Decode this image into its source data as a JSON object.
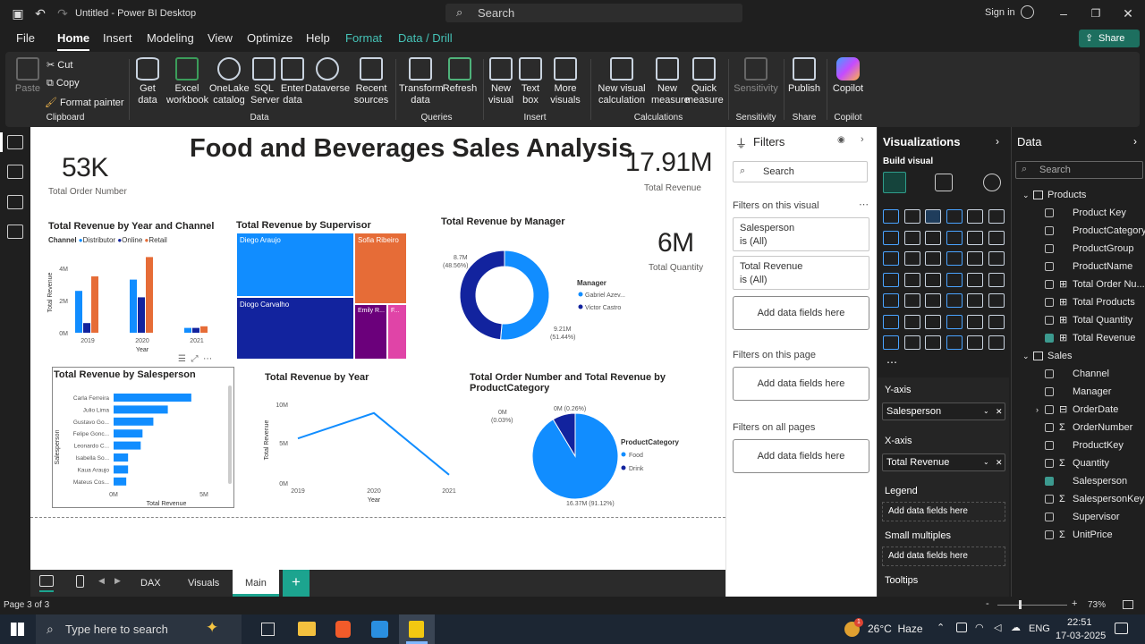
{
  "window": {
    "title": "Untitled - Power BI Desktop",
    "search": "Search",
    "signin": "Sign in"
  },
  "menu": {
    "file": "File",
    "home": "Home",
    "insert": "Insert",
    "modeling": "Modeling",
    "view": "View",
    "optimize": "Optimize",
    "help": "Help",
    "format": "Format",
    "datadrill": "Data / Drill",
    "share": "Share"
  },
  "ribbon": {
    "paste": "Paste",
    "cut": "Cut",
    "copy": "Copy",
    "format_painter": "Format painter",
    "clipboard": "Clipboard",
    "get_data": "Get data",
    "excel": "Excel workbook",
    "onelake": "OneLake catalog",
    "sql": "SQL Server",
    "enter": "Enter data",
    "dataverse": "Dataverse",
    "recent": "Recent sources",
    "data_group": "Data",
    "transform": "Transform data",
    "refresh": "Refresh",
    "queries": "Queries",
    "new_visual": "New visual",
    "text_box": "Text box",
    "more_visuals": "More visuals",
    "insert_group": "Insert",
    "new_visual_calc": "New visual calculation",
    "new_measure": "New measure",
    "quick_measure": "Quick measure",
    "calculations": "Calculations",
    "sensitivity": "Sensitivity",
    "sensitivity_group": "Sensitivity",
    "publish": "Publish",
    "share_group": "Share",
    "copilot": "Copilot",
    "copilot_group": "Copilot"
  },
  "report": {
    "title": "Food and Beverages Sales Analysis",
    "kpi_orders": {
      "value": "53K",
      "label": "Total Order Number"
    },
    "kpi_revenue": {
      "value": "17.91M",
      "label": "Total Revenue"
    },
    "kpi_quantity": {
      "value": "6M",
      "label": "Total Quantity"
    },
    "c1": {
      "title": "Total Revenue by Year and Channel",
      "legend_title": "Channel",
      "legend": [
        "Distributor",
        "Online",
        "Retail"
      ],
      "yticks": [
        "4M",
        "2M",
        "0M"
      ],
      "xticks": [
        "2019",
        "2020",
        "2021"
      ],
      "xlabel": "Year",
      "ylabel": "Total Revenue"
    },
    "c2": {
      "title": "Total Revenue by Supervisor",
      "labels": [
        "Diego Araujo",
        "Sofia Ribeiro",
        "Diogo Carvalho",
        "Emily R...",
        "F..."
      ]
    },
    "c3": {
      "title": "Total Revenue by Manager",
      "legend_title": "Manager",
      "legend": [
        "Gabriel Azev...",
        "Victor Castro"
      ],
      "label_a": "8.7M",
      "label_a2": "(48.56%)",
      "label_b": "9.21M",
      "label_b2": "(51.44%)"
    },
    "c4": {
      "title": "Total Revenue by Salesperson",
      "ylabel": "Salesperson",
      "xlabel": "Total Revenue",
      "names": [
        "Carla Ferreira",
        "Julio Lima",
        "Gustavo Go...",
        "Felipe Gonc...",
        "Leonardo C...",
        "Isabella So...",
        "Kaua Araujo",
        "Mateus Cos..."
      ],
      "xticks": [
        "0M",
        "5M"
      ]
    },
    "c5": {
      "title": "Total Revenue by Year",
      "ylabel": "Total Revenue",
      "xlabel": "Year",
      "yticks": [
        "10M",
        "5M",
        "0M"
      ],
      "xticks": [
        "2019",
        "2020",
        "2021"
      ]
    },
    "c6": {
      "title": "Total Order Number and Total Revenue by ProductCategory",
      "legend_title": "ProductCategory",
      "legend": [
        "Food",
        "Drink"
      ],
      "label_a": "0M (0.26%)",
      "label_b": "0M",
      "label_b2": "(0.03%)",
      "label_c": "16.37M (91.12%)"
    }
  },
  "chart_data": [
    {
      "type": "bar",
      "title": "Total Revenue by Year and Channel",
      "categories": [
        "2019",
        "2020",
        "2021"
      ],
      "series": [
        {
          "name": "Distributor",
          "values": [
            2.6,
            3.3,
            0.3
          ]
        },
        {
          "name": "Online",
          "values": [
            0.6,
            2.2,
            0.3
          ]
        },
        {
          "name": "Retail",
          "values": [
            3.5,
            4.7,
            0.4
          ]
        }
      ],
      "ylim": [
        0,
        5
      ],
      "xlabel": "Year",
      "ylabel": "Total Revenue"
    },
    {
      "type": "line",
      "title": "Total Revenue by Year",
      "x": [
        "2019",
        "2020",
        "2021"
      ],
      "values": [
        6.5,
        10.2,
        1.2
      ],
      "ylim": [
        0,
        12
      ],
      "xlabel": "Year",
      "ylabel": "Total Revenue"
    },
    {
      "type": "bar",
      "title": "Total Revenue by Salesperson",
      "orientation": "horizontal",
      "categories": [
        "Carla Ferreira",
        "Julio Lima",
        "Gustavo Go...",
        "Felipe Gonc...",
        "Leonardo C...",
        "Isabella So...",
        "Kaua Araujo",
        "Mateus Cos..."
      ],
      "values": [
        4.3,
        3.0,
        2.2,
        1.6,
        1.5,
        0.8,
        0.8,
        0.7
      ],
      "xlim": [
        0,
        5
      ],
      "xlabel": "Total Revenue",
      "ylabel": "Salesperson"
    },
    {
      "type": "pie",
      "title": "Total Revenue by Manager",
      "labels": [
        "Gabriel Azev...",
        "Victor Castro"
      ],
      "values": [
        9.21,
        8.7
      ]
    },
    {
      "type": "pie",
      "title": "Total Order Number and Total Revenue by ProductCategory",
      "labels": [
        "Food",
        "Drink"
      ],
      "values": [
        16.37,
        1.54
      ]
    }
  ],
  "filters": {
    "title": "Filters",
    "search": "Search",
    "on_visual": "Filters on this visual",
    "f1": "Salesperson",
    "f1v": "is (All)",
    "f2": "Total Revenue",
    "f2v": "is (All)",
    "add": "Add data fields here",
    "on_page": "Filters on this page",
    "on_all": "Filters on all pages"
  },
  "viz": {
    "title": "Visualizations",
    "build": "Build visual",
    "yaxis": "Y-axis",
    "yfield": "Salesperson",
    "xaxis": "X-axis",
    "xfield": "Total Revenue",
    "legend": "Legend",
    "add": "Add data fields here",
    "small": "Small multiples",
    "tooltips": "Tooltips"
  },
  "data": {
    "title": "Data",
    "search": "Search",
    "products": "Products",
    "p_fields": [
      "Product Key",
      "ProductCategory",
      "ProductGroup",
      "ProductName",
      "Total Order Nu...",
      "Total Products",
      "Total Quantity",
      "Total Revenue"
    ],
    "sales": "Sales",
    "s_fields": [
      "Channel",
      "Manager",
      "OrderDate",
      "OrderNumber",
      "ProductKey",
      "Quantity",
      "Salesperson",
      "SalespersonKey",
      "Supervisor",
      "UnitPrice"
    ]
  },
  "tabs": {
    "dax": "DAX",
    "visuals": "Visuals",
    "main": "Main"
  },
  "status": {
    "page": "Page 3 of 3",
    "zoom": "73%"
  },
  "taskbar": {
    "search": "Type here to search",
    "weather": "26°C  Haze",
    "lang": "ENG",
    "time": "22:51",
    "date": "17-03-2025",
    "badge": "1"
  }
}
